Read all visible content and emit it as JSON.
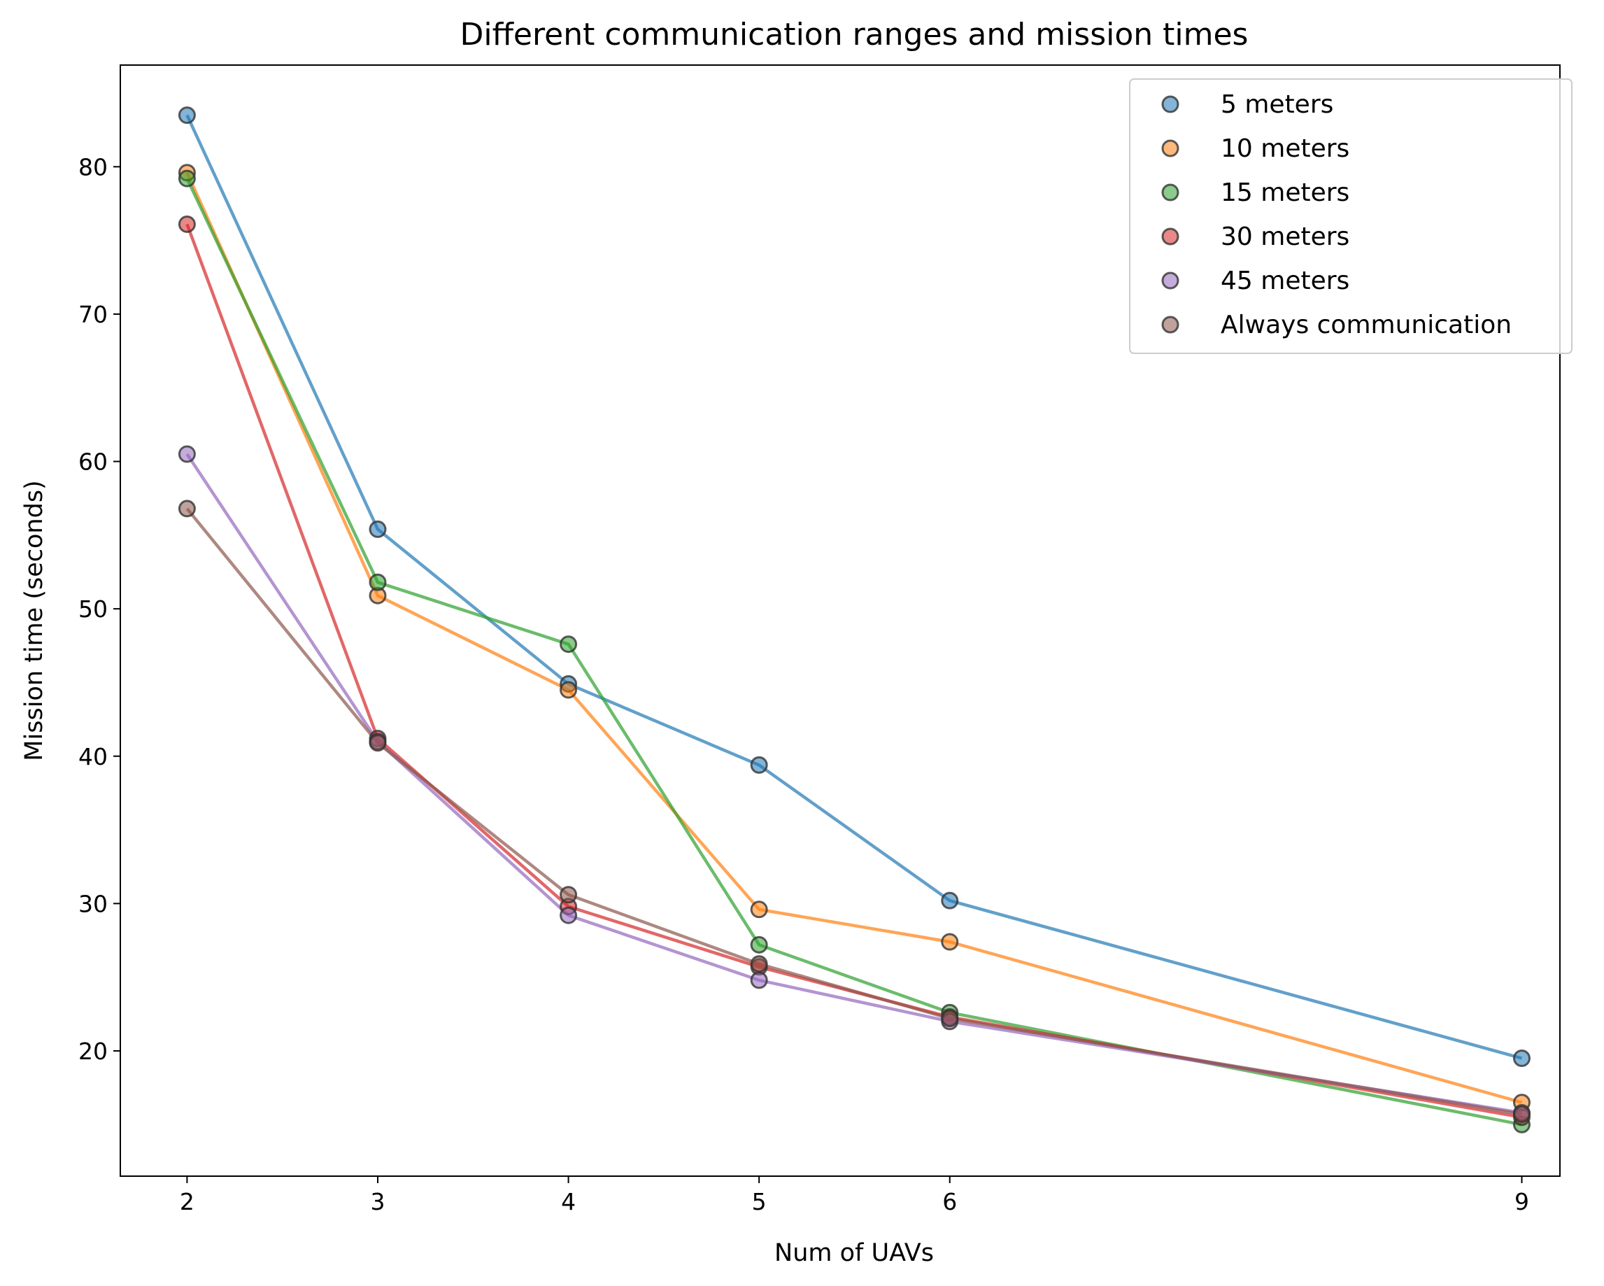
{
  "chart_data": {
    "type": "line",
    "title": "Different communication ranges and mission times",
    "xlabel": "Num of UAVs",
    "ylabel": "Mission time (seconds)",
    "x": [
      2,
      3,
      4,
      5,
      6,
      9
    ],
    "xticks": [
      "2",
      "3",
      "4",
      "5",
      "6",
      "9"
    ],
    "yticks": [
      "20",
      "30",
      "40",
      "50",
      "60",
      "70",
      "80"
    ],
    "xlim": [
      1.65,
      9.2
    ],
    "ylim": [
      11.5,
      86.9
    ],
    "grid": false,
    "legend_position": "top-right",
    "series": [
      {
        "name": "5 meters",
        "color": "#1f77b4",
        "values": [
          83.5,
          55.4,
          44.9,
          39.4,
          30.2,
          19.5
        ]
      },
      {
        "name": "10 meters",
        "color": "#ff7f0e",
        "values": [
          79.6,
          50.9,
          44.5,
          29.6,
          27.4,
          16.5
        ]
      },
      {
        "name": "15 meters",
        "color": "#2ca02c",
        "values": [
          79.2,
          51.8,
          47.6,
          27.2,
          22.6,
          15.0
        ]
      },
      {
        "name": "30 meters",
        "color": "#d62728",
        "values": [
          76.1,
          41.2,
          29.8,
          25.7,
          22.3,
          15.5
        ]
      },
      {
        "name": "45 meters",
        "color": "#9467bd",
        "values": [
          60.5,
          41.0,
          29.2,
          24.8,
          22.0,
          15.8
        ]
      },
      {
        "name": "Always communication",
        "color": "#8c564b",
        "values": [
          56.8,
          40.9,
          30.6,
          25.9,
          22.2,
          15.7
        ]
      }
    ]
  }
}
